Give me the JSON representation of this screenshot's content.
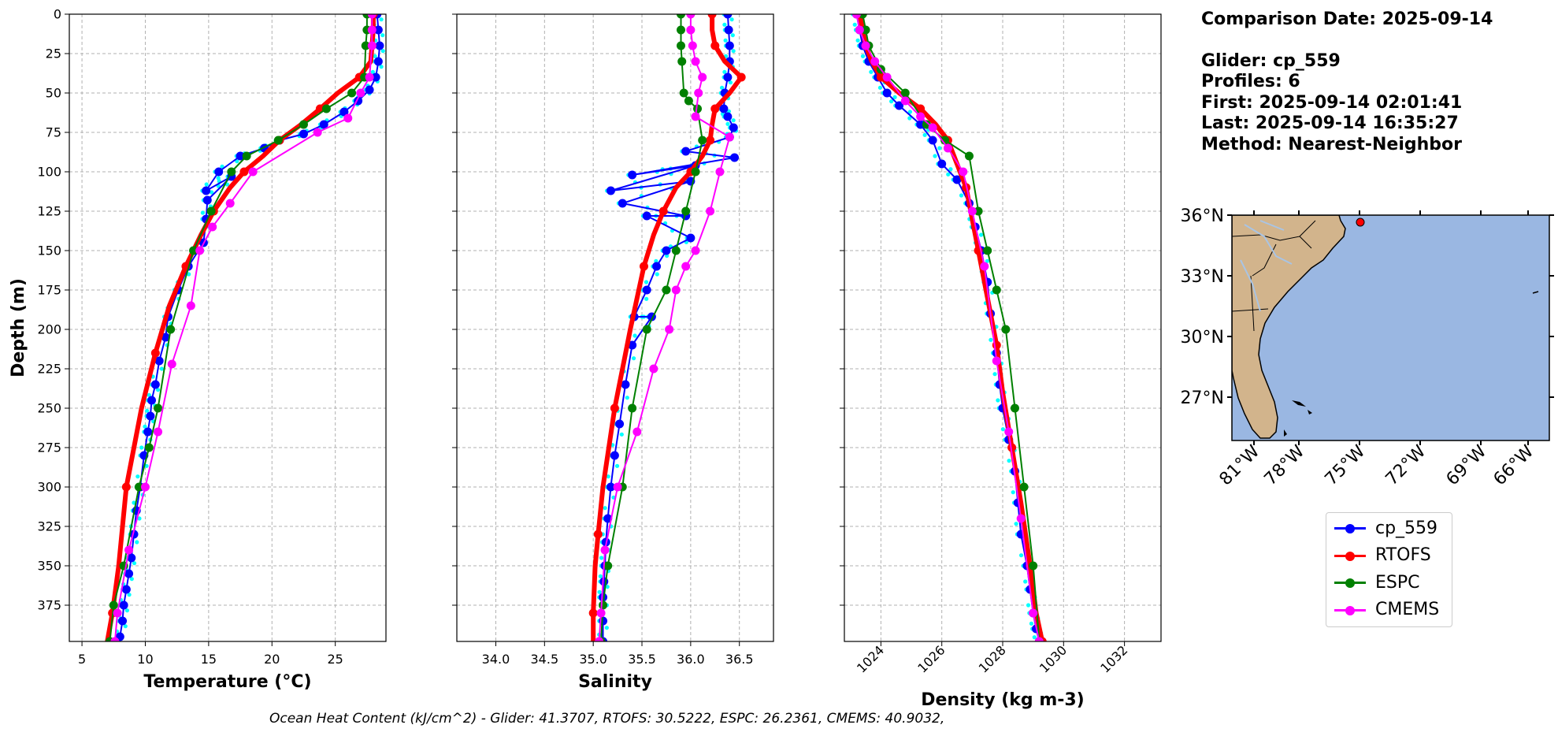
{
  "info": {
    "comparison_date": "Comparison Date: 2025-09-14",
    "glider": "Glider: cp_559",
    "profiles": "Profiles: 6",
    "first": "First: 2025-09-14 02:01:41",
    "last": "Last: 2025-09-14 16:35:27",
    "method": "Method: Nearest-Neighbor"
  },
  "footer": "Ocean Heat Content (kJ/cm^2) - Glider: 41.3707,  RTOFS: 30.5222,  ESPC: 26.2361,  CMEMS: 40.9032,",
  "colors": {
    "cp_559": "#0000ff",
    "RTOFS": "#ff0000",
    "ESPC": "#008000",
    "CMEMS": "#ff00ff",
    "raw_glider": "#00ffff",
    "ocean": "#9ab7e2",
    "land": "#d2b48c",
    "rivers": "#a9c4e4"
  },
  "legend": [
    {
      "label": "cp_559",
      "color": "#0000ff"
    },
    {
      "label": "RTOFS",
      "color": "#ff0000"
    },
    {
      "label": "ESPC",
      "color": "#008000"
    },
    {
      "label": "CMEMS",
      "color": "#ff00ff"
    }
  ],
  "map": {
    "lat_labels": [
      "36°N",
      "33°N",
      "30°N",
      "27°N"
    ],
    "lon_labels": [
      "81°W",
      "78°W",
      "75°W",
      "72°W",
      "69°W",
      "66°W"
    ],
    "glider_position": {
      "lon": -74.4,
      "lat": 35.7
    }
  },
  "chart_data": [
    {
      "type": "line",
      "xlabel": "Temperature (°C)",
      "ylabel": "Depth (m)",
      "xlim": [
        4,
        29
      ],
      "ylim": [
        398,
        0
      ],
      "xticks": [
        "5",
        "10",
        "15",
        "20",
        "25"
      ],
      "yticks": [
        "0",
        "25",
        "50",
        "75",
        "100",
        "125",
        "150",
        "175",
        "200",
        "225",
        "250",
        "275",
        "300",
        "325",
        "350",
        "375"
      ],
      "grid": true,
      "series": [
        {
          "name": "cp_559",
          "x": [
            28.3,
            28.4,
            28.5,
            28.4,
            28.2,
            27.7,
            26.8,
            25.7,
            24.1,
            22.5,
            20.6,
            19.4,
            17.5,
            15.8,
            14.8,
            16.8,
            14.9,
            14.8,
            14.6,
            13.4,
            12.6,
            11.8,
            11.6,
            11.1,
            10.8,
            10.5,
            10.4,
            10.2,
            9.9,
            9.6,
            9.3,
            9.1,
            8.9,
            8.7,
            8.5,
            8.3,
            8.2,
            8.0
          ],
          "y": [
            0,
            10,
            20,
            30,
            40,
            48,
            55,
            62,
            70,
            76,
            80,
            85,
            90,
            100,
            112,
            103,
            118,
            130,
            145,
            160,
            175,
            192,
            205,
            220,
            235,
            245,
            255,
            265,
            280,
            300,
            315,
            330,
            345,
            355,
            365,
            375,
            385,
            395
          ]
        },
        {
          "name": "RTOFS",
          "x": [
            28.0,
            28.0,
            27.9,
            27.8,
            26.9,
            25.2,
            23.8,
            22.3,
            20.6,
            19.3,
            17.8,
            16.7,
            15.4,
            14.4,
            13.2,
            11.9,
            10.8,
            9.7,
            8.5,
            7.9,
            7.4,
            7.0
          ],
          "y": [
            0,
            10,
            20,
            30,
            40,
            50,
            60,
            70,
            80,
            90,
            100,
            110,
            125,
            140,
            160,
            185,
            215,
            250,
            300,
            350,
            380,
            398
          ]
        },
        {
          "name": "ESPC",
          "x": [
            27.5,
            27.5,
            27.4,
            27.3,
            26.3,
            24.3,
            22.5,
            20.5,
            18.0,
            16.8,
            15.2,
            13.8,
            12.0,
            11.0,
            10.3,
            9.5,
            8.3,
            7.5,
            7.2
          ],
          "y": [
            0,
            10,
            20,
            40,
            50,
            60,
            70,
            80,
            90,
            100,
            125,
            150,
            200,
            250,
            275,
            300,
            350,
            375,
            398
          ]
        },
        {
          "name": "CMEMS",
          "x": [
            27.9,
            27.9,
            27.9,
            27.7,
            27.0,
            26.0,
            23.6,
            18.5,
            16.7,
            15.3,
            14.3,
            13.6,
            12.1,
            11.0,
            10.0,
            8.7,
            7.8,
            7.6
          ],
          "y": [
            0,
            10,
            20,
            40,
            50,
            66,
            75,
            100,
            120,
            135,
            150,
            185,
            222,
            265,
            300,
            340,
            380,
            398
          ]
        }
      ]
    },
    {
      "type": "line",
      "xlabel": "Salinity",
      "xlim": [
        33.6,
        36.85
      ],
      "ylim": [
        398,
        0
      ],
      "xticks": [
        "34.0",
        "34.5",
        "35.0",
        "35.5",
        "36.0",
        "36.5"
      ],
      "grid": true,
      "series": [
        {
          "name": "cp_559",
          "x": [
            36.38,
            36.39,
            36.4,
            36.4,
            36.38,
            36.35,
            36.34,
            36.38,
            36.44,
            36.4,
            35.95,
            36.45,
            35.4,
            36.05,
            35.18,
            36.0,
            35.3,
            35.95,
            35.55,
            36.0,
            35.75,
            35.65,
            35.55,
            35.42,
            35.6,
            35.4,
            35.33,
            35.27,
            35.22,
            35.18,
            35.15,
            35.13,
            35.12,
            35.11,
            35.1,
            35.1,
            35.1
          ],
          "y": [
            0,
            10,
            20,
            30,
            40,
            50,
            60,
            65,
            72,
            78,
            87,
            91,
            102,
            96,
            112,
            106,
            120,
            128,
            128,
            142,
            150,
            160,
            175,
            192,
            192,
            210,
            235,
            260,
            280,
            300,
            320,
            335,
            350,
            360,
            370,
            385,
            398
          ]
        },
        {
          "name": "RTOFS",
          "x": [
            36.22,
            36.22,
            36.25,
            36.35,
            36.52,
            36.4,
            36.25,
            36.22,
            36.2,
            36.12,
            36.0,
            35.85,
            35.72,
            35.62,
            35.52,
            35.38,
            35.22,
            35.1,
            35.05,
            35.02,
            35.0,
            35.0
          ],
          "y": [
            0,
            10,
            20,
            30,
            40,
            50,
            60,
            70,
            80,
            90,
            100,
            110,
            125,
            140,
            160,
            200,
            250,
            300,
            330,
            350,
            380,
            398
          ]
        },
        {
          "name": "ESPC",
          "x": [
            35.9,
            35.9,
            35.9,
            35.91,
            35.93,
            35.98,
            36.07,
            36.12,
            36.05,
            35.95,
            35.85,
            35.75,
            35.55,
            35.4,
            35.3,
            35.15,
            35.1,
            35.08
          ],
          "y": [
            0,
            10,
            20,
            30,
            50,
            55,
            60,
            80,
            100,
            125,
            150,
            175,
            200,
            250,
            300,
            350,
            375,
            398
          ]
        },
        {
          "name": "CMEMS",
          "x": [
            36.0,
            36.0,
            36.02,
            36.05,
            36.12,
            36.08,
            36.05,
            36.4,
            36.3,
            36.2,
            36.05,
            35.95,
            35.85,
            35.78,
            35.62,
            35.45,
            35.25,
            35.12,
            35.08,
            35.06
          ],
          "y": [
            0,
            10,
            20,
            30,
            40,
            50,
            65,
            78,
            100,
            125,
            150,
            160,
            175,
            200,
            225,
            265,
            300,
            340,
            380,
            398
          ]
        }
      ]
    },
    {
      "type": "line",
      "xlabel": "Density (kg m-3)",
      "xlim": [
        1022.8,
        1033.2
      ],
      "ylim": [
        398,
        0
      ],
      "xticks": [
        "1024",
        "1026",
        "1028",
        "1030",
        "1032"
      ],
      "grid": true,
      "series": [
        {
          "name": "cp_559",
          "x": [
            1023.2,
            1023.3,
            1023.4,
            1023.6,
            1023.9,
            1024.2,
            1024.6,
            1025.3,
            1025.7,
            1026.0,
            1026.5,
            1026.9,
            1027.1,
            1027.3,
            1027.5,
            1027.6,
            1027.8,
            1027.9,
            1028.0,
            1028.2,
            1028.4,
            1028.5,
            1028.6,
            1028.8,
            1028.9,
            1029.0,
            1029.1,
            1029.2
          ],
          "y": [
            0,
            10,
            20,
            30,
            40,
            50,
            58,
            70,
            80,
            95,
            105,
            120,
            135,
            150,
            170,
            190,
            215,
            235,
            250,
            270,
            290,
            310,
            330,
            350,
            365,
            380,
            390,
            398
          ]
        },
        {
          "name": "RTOFS",
          "x": [
            1023.3,
            1023.4,
            1023.5,
            1023.7,
            1024.0,
            1024.6,
            1025.3,
            1025.8,
            1026.2,
            1026.5,
            1026.8,
            1027.0,
            1027.2,
            1027.5,
            1027.8,
            1028.0,
            1028.3,
            1028.6,
            1028.9,
            1029.1,
            1029.3
          ],
          "y": [
            0,
            10,
            20,
            30,
            40,
            50,
            60,
            70,
            80,
            95,
            110,
            130,
            150,
            180,
            210,
            240,
            275,
            310,
            350,
            380,
            398
          ]
        },
        {
          "name": "ESPC",
          "x": [
            1023.4,
            1023.5,
            1023.6,
            1024.0,
            1024.8,
            1025.5,
            1026.1,
            1026.9,
            1027.2,
            1027.5,
            1027.8,
            1028.1,
            1028.4,
            1028.7,
            1029.0,
            1029.2
          ],
          "y": [
            0,
            10,
            20,
            35,
            50,
            70,
            80,
            90,
            125,
            150,
            175,
            200,
            250,
            300,
            350,
            398
          ]
        },
        {
          "name": "CMEMS",
          "x": [
            1023.2,
            1023.3,
            1023.5,
            1023.8,
            1024.2,
            1024.8,
            1025.3,
            1025.7,
            1026.2,
            1026.7,
            1027.0,
            1027.4,
            1027.8,
            1028.2,
            1028.6,
            1029.0,
            1029.2
          ],
          "y": [
            0,
            10,
            20,
            30,
            40,
            55,
            65,
            72,
            85,
            100,
            125,
            160,
            220,
            265,
            320,
            380,
            398
          ]
        }
      ]
    }
  ]
}
